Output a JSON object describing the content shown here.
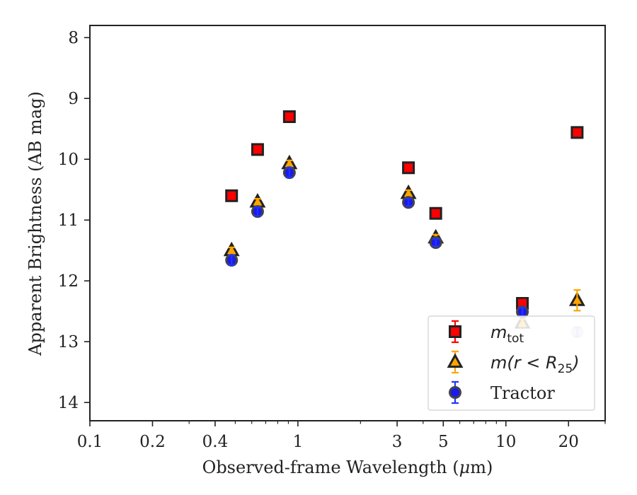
{
  "chart_data": {
    "type": "scatter",
    "xscale": "log",
    "xlim": [
      0.1,
      30
    ],
    "ylim": [
      14.3,
      7.8
    ],
    "y_inverted": true,
    "xlabel": "Observed-frame Wavelength (",
    "xlabel_mu": "μ",
    "xlabel_unit": "m)",
    "ylabel": "Apparent Brightness (AB mag)",
    "x_ticks": [
      {
        "value": 0.1,
        "label": "0.1"
      },
      {
        "value": 0.2,
        "label": "0.2"
      },
      {
        "value": 0.4,
        "label": "0.4"
      },
      {
        "value": 1,
        "label": "1"
      },
      {
        "value": 3,
        "label": "3"
      },
      {
        "value": 5,
        "label": "5"
      },
      {
        "value": 10,
        "label": "10"
      },
      {
        "value": 20,
        "label": "20"
      }
    ],
    "y_ticks": [
      {
        "value": 8,
        "label": "8"
      },
      {
        "value": 9,
        "label": "9"
      },
      {
        "value": 10,
        "label": "10"
      },
      {
        "value": 11,
        "label": "11"
      },
      {
        "value": 12,
        "label": "12"
      },
      {
        "value": 13,
        "label": "13"
      },
      {
        "value": 14,
        "label": "14"
      }
    ],
    "legend_position": "lower-right",
    "series": [
      {
        "key": "mtot",
        "marker": "square",
        "color": "#ff0000",
        "edge": "#222222",
        "errcolor": "#ff0000",
        "points": [
          {
            "x": 0.48,
            "y": 10.6,
            "err": 0.05
          },
          {
            "x": 0.64,
            "y": 9.84,
            "err": 0.04
          },
          {
            "x": 0.91,
            "y": 9.3,
            "err": 0.04
          },
          {
            "x": 3.4,
            "y": 10.14,
            "err": 0.05
          },
          {
            "x": 4.6,
            "y": 10.89,
            "err": 0.05
          },
          {
            "x": 12.0,
            "y": 12.37,
            "err": 0.06
          },
          {
            "x": 22.0,
            "y": 9.56,
            "err": 0.05
          }
        ]
      },
      {
        "key": "mr25",
        "marker": "triangle",
        "color": "#ffa500",
        "edge": "#222222",
        "errcolor": "#ffa500",
        "points": [
          {
            "x": 0.48,
            "y": 11.5,
            "err": 0.05
          },
          {
            "x": 0.64,
            "y": 10.7,
            "err": 0.05
          },
          {
            "x": 0.91,
            "y": 10.07,
            "err": 0.05
          },
          {
            "x": 3.4,
            "y": 10.56,
            "err": 0.05
          },
          {
            "x": 4.6,
            "y": 11.29,
            "err": 0.05
          },
          {
            "x": 12.0,
            "y": 12.69,
            "err": 0.06
          },
          {
            "x": 22.0,
            "y": 12.32,
            "err": 0.17
          }
        ]
      },
      {
        "key": "tractor",
        "marker": "circle",
        "color": "#1a1aee",
        "edge": "#444444",
        "errcolor": "#2233ff",
        "points": [
          {
            "x": 0.48,
            "y": 11.66,
            "err": 0.08
          },
          {
            "x": 0.64,
            "y": 10.86,
            "err": 0.07
          },
          {
            "x": 0.91,
            "y": 10.22,
            "err": 0.08
          },
          {
            "x": 3.4,
            "y": 10.71,
            "err": 0.06
          },
          {
            "x": 4.6,
            "y": 11.37,
            "err": 0.06
          },
          {
            "x": 12.0,
            "y": 12.51,
            "err": 0.07
          },
          {
            "x": 22.0,
            "y": 12.84,
            "err": 0.07,
            "faded": true
          }
        ]
      }
    ],
    "legend": [
      {
        "key": "mtot",
        "label_main": "m",
        "label_sub": "tot"
      },
      {
        "key": "mr25",
        "label_main": "m(r < R",
        "label_sub": "25",
        "label_tail": ")"
      },
      {
        "key": "tractor",
        "label_main": "Tractor"
      }
    ]
  }
}
